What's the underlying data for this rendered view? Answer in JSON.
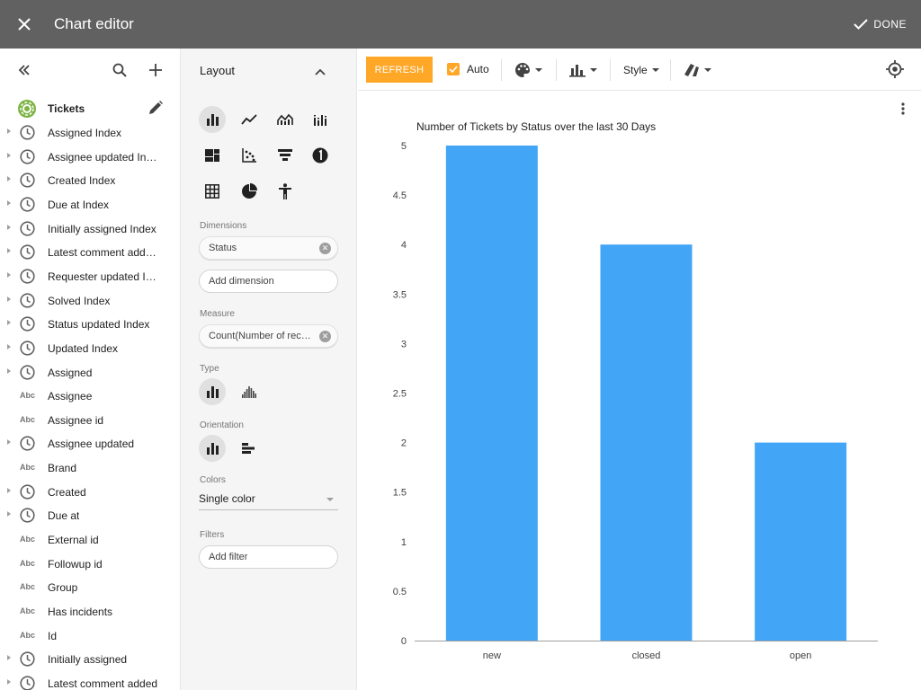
{
  "topbar": {
    "title": "Chart editor",
    "done_label": "DONE"
  },
  "data_source": {
    "name": "Tickets"
  },
  "fields": [
    {
      "type": "time",
      "expandable": true,
      "label": "Assigned Index"
    },
    {
      "type": "time",
      "expandable": true,
      "label": "Assignee updated Index"
    },
    {
      "type": "time",
      "expandable": true,
      "label": "Created Index"
    },
    {
      "type": "time",
      "expandable": true,
      "label": "Due at Index"
    },
    {
      "type": "time",
      "expandable": true,
      "label": "Initially assigned Index"
    },
    {
      "type": "time",
      "expandable": true,
      "label": "Latest comment adde…"
    },
    {
      "type": "time",
      "expandable": true,
      "label": "Requester updated Ind…"
    },
    {
      "type": "time",
      "expandable": true,
      "label": "Solved Index"
    },
    {
      "type": "time",
      "expandable": true,
      "label": "Status updated Index"
    },
    {
      "type": "time",
      "expandable": true,
      "label": "Updated Index"
    },
    {
      "type": "time",
      "expandable": true,
      "label": "Assigned"
    },
    {
      "type": "text",
      "expandable": false,
      "label": "Assignee"
    },
    {
      "type": "text",
      "expandable": false,
      "label": "Assignee id"
    },
    {
      "type": "time",
      "expandable": true,
      "label": "Assignee updated"
    },
    {
      "type": "text",
      "expandable": false,
      "label": "Brand"
    },
    {
      "type": "time",
      "expandable": true,
      "label": "Created"
    },
    {
      "type": "time",
      "expandable": true,
      "label": "Due at"
    },
    {
      "type": "text",
      "expandable": false,
      "label": "External id"
    },
    {
      "type": "text",
      "expandable": false,
      "label": "Followup id"
    },
    {
      "type": "text",
      "expandable": false,
      "label": "Group"
    },
    {
      "type": "text",
      "expandable": false,
      "label": "Has incidents"
    },
    {
      "type": "text",
      "expandable": false,
      "label": "Id"
    },
    {
      "type": "time",
      "expandable": true,
      "label": "Initially assigned"
    },
    {
      "type": "time",
      "expandable": true,
      "label": "Latest comment added"
    }
  ],
  "abc_label": "Abc",
  "layout_panel": {
    "title": "Layout",
    "dimensions_label": "Dimensions",
    "dimension_chip": "Status",
    "add_dimension": "Add dimension",
    "measure_label": "Measure",
    "measure_chip": "Count(Number of records)",
    "type_label": "Type",
    "orientation_label": "Orientation",
    "colors_label": "Colors",
    "colors_value": "Single color",
    "filters_label": "Filters",
    "add_filter": "Add filter",
    "chart_types": [
      "bar-chart-icon",
      "line-chart-icon",
      "area-chart-icon",
      "multi-bar-chart-icon",
      "treemap-icon",
      "scatter-chart-icon",
      "funnel-chart-icon",
      "single-value-icon",
      "table-chart-icon",
      "pie-chart-icon",
      "person-chart-icon"
    ]
  },
  "toolbar": {
    "refresh_label": "REFRESH",
    "auto_label": "Auto",
    "style_label": "Style"
  },
  "colors": {
    "accent": "#ffa726",
    "bar": "#42a5f5",
    "topbar": "#616161"
  },
  "chart_data": {
    "type": "bar",
    "title": "Number of Tickets by Status over the last 30 Days",
    "categories": [
      "new",
      "closed",
      "open"
    ],
    "values": [
      5,
      4,
      2
    ],
    "yticks": [
      "0",
      "0.5",
      "1",
      "1.5",
      "2",
      "2.5",
      "3",
      "3.5",
      "4",
      "4.5",
      "5"
    ],
    "ylim": [
      0,
      5
    ],
    "grid": false,
    "legend": "none"
  }
}
